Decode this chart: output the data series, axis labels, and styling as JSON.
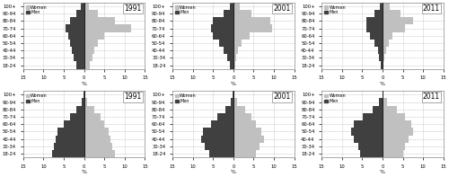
{
  "age_groups": [
    "18-24",
    "30-34",
    "40-44",
    "50-54",
    "60-64",
    "70-74",
    "80-84",
    "90-94",
    "100+"
  ],
  "years": [
    "1991",
    "2001",
    "2011"
  ],
  "xlim": 15,
  "xlabel": "%",
  "color_women": "#c0c0c0",
  "color_men": "#404040",
  "upper_panel": {
    "1991": {
      "women": [
        1.5,
        2.0,
        2.5,
        3.5,
        5.0,
        11.5,
        7.5,
        3.5,
        1.2
      ],
      "men": [
        2.0,
        2.5,
        3.0,
        3.5,
        4.0,
        4.5,
        3.5,
        2.0,
        0.8
      ]
    },
    "2001": {
      "women": [
        0.5,
        0.8,
        1.2,
        2.0,
        4.0,
        9.5,
        9.0,
        4.5,
        1.5
      ],
      "men": [
        0.8,
        1.5,
        2.5,
        3.5,
        5.0,
        5.5,
        5.0,
        2.5,
        0.8
      ]
    },
    "2011": {
      "women": [
        0.3,
        0.5,
        0.8,
        1.5,
        2.5,
        5.5,
        7.5,
        4.5,
        1.8
      ],
      "men": [
        0.5,
        0.8,
        1.2,
        2.0,
        3.0,
        4.0,
        4.0,
        2.0,
        0.6
      ]
    }
  },
  "lower_panel": {
    "1991": {
      "women": [
        7.5,
        7.0,
        6.5,
        6.0,
        5.0,
        4.0,
        2.5,
        0.8,
        0.2
      ],
      "men": [
        7.8,
        7.5,
        7.0,
        6.5,
        5.0,
        3.5,
        1.8,
        0.6,
        0.1
      ]
    },
    "2001": {
      "women": [
        5.5,
        6.5,
        7.5,
        7.0,
        5.5,
        4.5,
        3.0,
        1.0,
        0.2
      ],
      "men": [
        6.0,
        7.0,
        8.0,
        7.5,
        5.5,
        4.0,
        2.0,
        0.7,
        0.1
      ]
    },
    "2011": {
      "women": [
        5.0,
        5.5,
        6.5,
        7.5,
        7.0,
        5.5,
        3.5,
        1.2,
        0.3
      ],
      "men": [
        5.5,
        6.0,
        7.0,
        7.8,
        7.0,
        4.8,
        2.5,
        0.8,
        0.1
      ]
    }
  }
}
